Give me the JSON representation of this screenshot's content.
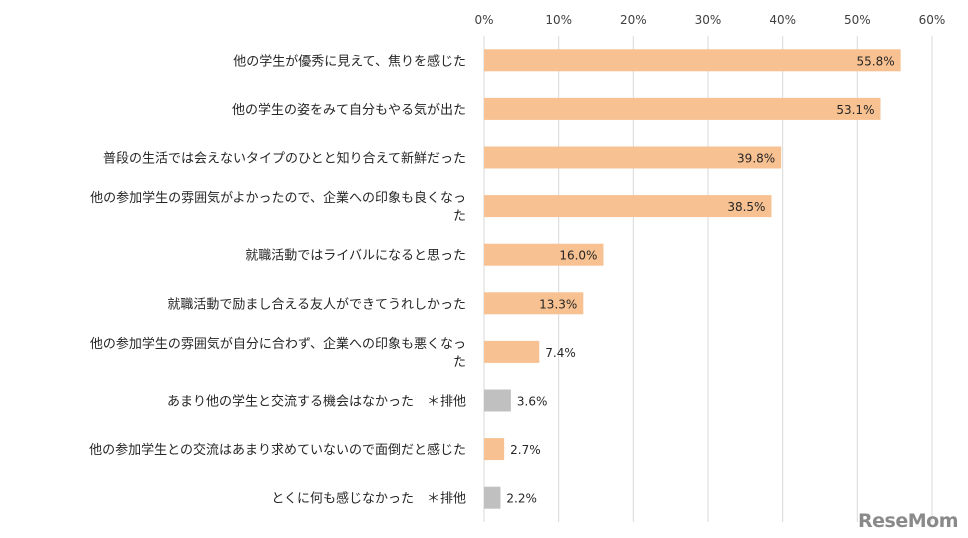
{
  "chart_data": {
    "type": "bar",
    "orientation": "horizontal",
    "title": "",
    "xlabel": "",
    "ylabel": "",
    "xlim": [
      0,
      60
    ],
    "x_ticks": [
      "0%",
      "10%",
      "20%",
      "30%",
      "40%",
      "50%",
      "60%"
    ],
    "grid": true,
    "categories": [
      [
        "他の学生が優秀に見えて、焦りを感じた"
      ],
      [
        "他の学生の姿をみて自分もやる気が出た"
      ],
      [
        "普段の生活では会えないタイプのひとと知り合えて新鮮だった"
      ],
      [
        "他の参加学生の雰囲気がよかったので、企業への印象も良くなっ",
        "た"
      ],
      [
        "就職活動ではライバルになると思った"
      ],
      [
        "就職活動で励まし合える友人ができてうれしかった"
      ],
      [
        "他の参加学生の雰囲気が自分に合わず、企業への印象も悪くなっ",
        "た"
      ],
      [
        "あまり他の学生と交流する機会はなかった　＊排他"
      ],
      [
        "他の参加学生との交流はあまり求めていないので面倒だと感じた"
      ],
      [
        "とくに何も感じなかった　＊排他"
      ]
    ],
    "values": [
      55.8,
      53.1,
      39.8,
      38.5,
      16.0,
      13.3,
      7.4,
      3.6,
      2.7,
      2.2
    ],
    "value_labels": [
      "55.8%",
      "53.1%",
      "39.8%",
      "38.5%",
      "16.0%",
      "13.3%",
      "7.4%",
      "3.6%",
      "2.7%",
      "2.2%"
    ],
    "bar_colors": [
      "#f8c191",
      "#f8c191",
      "#f8c191",
      "#f8c191",
      "#f8c191",
      "#f8c191",
      "#f8c191",
      "#c0c0c0",
      "#f8c191",
      "#c0c0c0"
    ]
  },
  "watermark": "ReseMom"
}
